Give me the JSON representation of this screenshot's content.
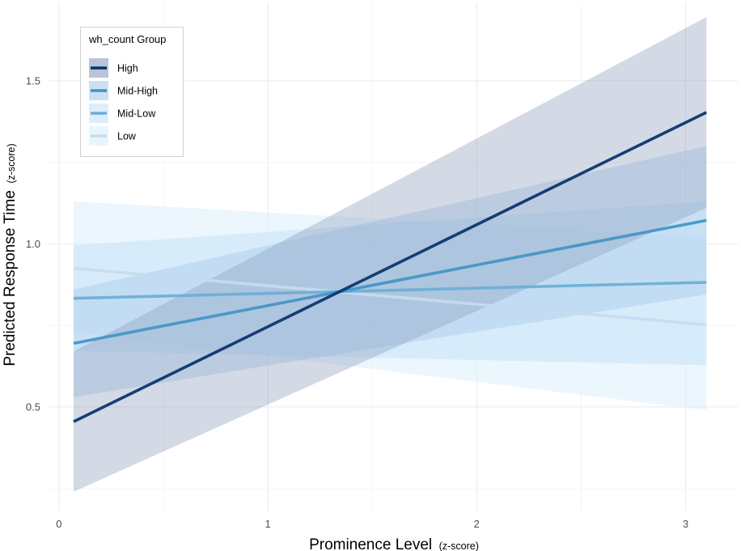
{
  "chart_data": {
    "type": "line",
    "xlabel": "Prominence Level",
    "xlabel_unit": "(z-score)",
    "ylabel": "Predicted Response Time",
    "ylabel_unit": "(z-score)",
    "xlim": [
      -0.05,
      3.25
    ],
    "ylim": [
      0.18,
      1.74
    ],
    "x_ticks": [
      0,
      1,
      2,
      3
    ],
    "x_tick_labels": [
      "0",
      "1",
      "2",
      "3"
    ],
    "y_ticks": [
      0.5,
      1.0,
      1.5
    ],
    "y_tick_labels": [
      "0.5",
      "1.0",
      "1.5"
    ],
    "grid": true,
    "legend": {
      "title": "wh_count Group",
      "position": "top-left"
    },
    "series": [
      {
        "name": "Low",
        "color": "#c6dbef",
        "band_color": "#dbeefb",
        "band_opacity": 0.55,
        "x": [
          0.07,
          3.1
        ],
        "y": [
          0.925,
          0.752
        ],
        "lower": [
          0.73,
          0.49
        ],
        "upper": [
          1.13,
          1.02
        ]
      },
      {
        "name": "Mid-Low",
        "color": "#6baed6",
        "band_color": "#c7e3f7",
        "band_opacity": 0.55,
        "x": [
          0.07,
          3.1
        ],
        "y": [
          0.833,
          0.882
        ],
        "lower": [
          0.672,
          0.628
        ],
        "upper": [
          0.995,
          1.13
        ]
      },
      {
        "name": "Mid-High",
        "color": "#4292c6",
        "band_color": "#a9cceb",
        "band_opacity": 0.45,
        "x": [
          0.07,
          3.1
        ],
        "y": [
          0.695,
          1.072
        ],
        "lower": [
          0.53,
          0.845
        ],
        "upper": [
          0.86,
          1.3
        ]
      },
      {
        "name": "High",
        "color": "#08306b",
        "band_color": "#8c9dbd",
        "band_opacity": 0.38,
        "x": [
          0.07,
          3.1
        ],
        "y": [
          0.455,
          1.403
        ],
        "lower": [
          0.24,
          1.11
        ],
        "upper": [
          0.67,
          1.695
        ]
      }
    ],
    "legend_order": [
      "High",
      "Mid-High",
      "Mid-Low",
      "Low"
    ]
  }
}
